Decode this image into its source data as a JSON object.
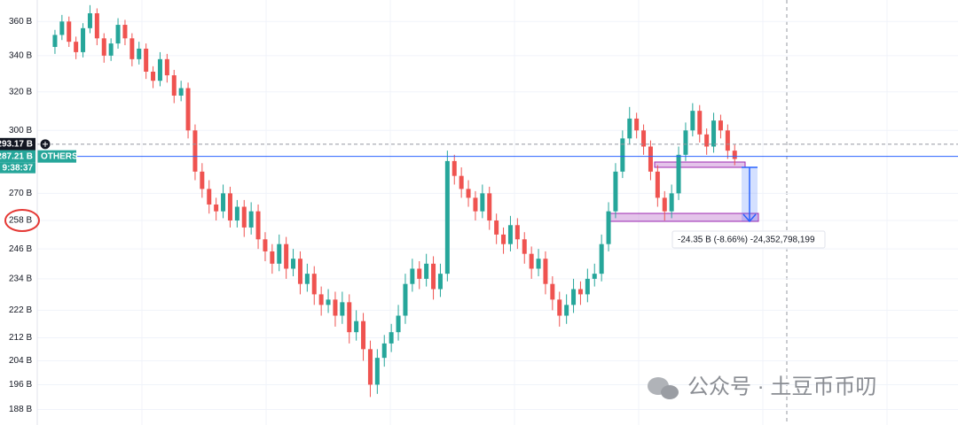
{
  "chart_data": {
    "type": "candlestick",
    "log_scale": true,
    "grid": true,
    "ylim": [
      183.2,
      373.2
    ],
    "yticks": [
      {
        "value": 360,
        "label": "360 B"
      },
      {
        "value": 340,
        "label": "340 B"
      },
      {
        "value": 320,
        "label": "320 B"
      },
      {
        "value": 300,
        "label": "300 B"
      },
      {
        "value": 270,
        "label": "270 B"
      },
      {
        "value": 258,
        "label": "258 B"
      },
      {
        "value": 246,
        "label": "246 B"
      },
      {
        "value": 234,
        "label": "234 B"
      },
      {
        "value": 222,
        "label": "222 B"
      },
      {
        "value": 212,
        "label": "212 B"
      },
      {
        "value": 204,
        "label": "204 B"
      },
      {
        "value": 196,
        "label": "196 B"
      },
      {
        "value": 188,
        "label": "188 B"
      }
    ],
    "up_color": "#26a69a",
    "down_color": "#ef5350",
    "price_lines": [
      {
        "value": 293.17,
        "label": "293.17 B",
        "color": "#131722"
      },
      {
        "value": 287.21,
        "label": "287.21 B",
        "color": "#2962ff"
      }
    ],
    "symbol": "OTHERS",
    "countdown": "9:38:37",
    "measure_label": "-24.35 B (-8.66%) -24,352,798,199",
    "ohlc": [
      [
        345,
        355,
        341,
        352
      ],
      [
        352,
        364,
        349,
        360
      ],
      [
        360,
        363,
        345,
        348
      ],
      [
        348,
        351,
        338,
        342
      ],
      [
        342,
        359,
        339,
        356
      ],
      [
        356,
        370,
        353,
        365
      ],
      [
        365,
        368,
        346,
        350
      ],
      [
        350,
        353,
        336,
        340
      ],
      [
        340,
        350,
        337,
        347
      ],
      [
        347,
        362,
        344,
        358
      ],
      [
        358,
        361,
        346,
        350
      ],
      [
        350,
        353,
        334,
        338
      ],
      [
        338,
        348,
        335,
        344
      ],
      [
        344,
        347,
        327,
        331
      ],
      [
        331,
        334,
        322,
        326
      ],
      [
        326,
        342,
        323,
        338
      ],
      [
        338,
        341,
        325,
        329
      ],
      [
        329,
        332,
        314,
        318
      ],
      [
        318,
        326,
        315,
        322
      ],
      [
        322,
        325,
        296,
        300
      ],
      [
        300,
        303,
        276,
        280
      ],
      [
        280,
        284,
        268,
        272
      ],
      [
        272,
        276,
        261,
        265
      ],
      [
        265,
        268,
        258,
        262
      ],
      [
        262,
        274,
        259,
        270
      ],
      [
        270,
        273,
        255,
        258
      ],
      [
        258,
        267,
        255,
        264
      ],
      [
        264,
        267,
        251,
        255
      ],
      [
        255,
        266,
        252,
        262
      ],
      [
        262,
        265,
        246,
        250
      ],
      [
        250,
        253,
        241,
        245
      ],
      [
        245,
        248,
        236,
        240
      ],
      [
        240,
        252,
        237,
        248
      ],
      [
        248,
        251,
        234,
        238
      ],
      [
        238,
        246,
        235,
        242
      ],
      [
        242,
        245,
        228,
        232
      ],
      [
        232,
        240,
        229,
        236
      ],
      [
        236,
        239,
        224,
        228
      ],
      [
        228,
        231,
        220,
        224
      ],
      [
        224,
        230,
        221,
        226
      ],
      [
        226,
        229,
        216,
        220
      ],
      [
        220,
        229,
        217,
        225
      ],
      [
        225,
        228,
        210,
        214
      ],
      [
        214,
        222,
        211,
        218
      ],
      [
        218,
        221,
        204,
        208
      ],
      [
        208,
        211,
        192,
        196
      ],
      [
        196,
        208,
        193,
        205
      ],
      [
        205,
        213,
        202,
        210
      ],
      [
        210,
        217,
        207,
        214
      ],
      [
        214,
        224,
        211,
        220
      ],
      [
        220,
        236,
        217,
        232
      ],
      [
        232,
        242,
        229,
        238
      ],
      [
        238,
        241,
        230,
        234
      ],
      [
        234,
        244,
        231,
        240
      ],
      [
        240,
        243,
        226,
        230
      ],
      [
        230,
        240,
        227,
        236
      ],
      [
        236,
        290,
        233,
        285
      ],
      [
        285,
        288,
        274,
        278
      ],
      [
        278,
        282,
        268,
        272
      ],
      [
        272,
        276,
        264,
        268
      ],
      [
        268,
        271,
        258,
        262
      ],
      [
        262,
        274,
        259,
        270
      ],
      [
        270,
        273,
        254,
        258
      ],
      [
        258,
        261,
        248,
        252
      ],
      [
        252,
        255,
        244,
        248
      ],
      [
        248,
        260,
        245,
        256
      ],
      [
        256,
        259,
        246,
        250
      ],
      [
        250,
        253,
        240,
        244
      ],
      [
        244,
        247,
        234,
        238
      ],
      [
        238,
        246,
        235,
        242
      ],
      [
        242,
        245,
        228,
        232
      ],
      [
        232,
        235,
        222,
        226
      ],
      [
        226,
        229,
        216,
        220
      ],
      [
        220,
        228,
        217,
        224
      ],
      [
        224,
        234,
        221,
        230
      ],
      [
        230,
        233,
        224,
        228
      ],
      [
        228,
        238,
        225,
        234
      ],
      [
        234,
        240,
        231,
        236
      ],
      [
        236,
        252,
        233,
        248
      ],
      [
        248,
        266,
        245,
        262
      ],
      [
        262,
        284,
        259,
        280
      ],
      [
        280,
        300,
        277,
        296
      ],
      [
        296,
        312,
        293,
        306
      ],
      [
        306,
        309,
        296,
        300
      ],
      [
        300,
        303,
        288,
        292
      ],
      [
        292,
        295,
        276,
        280
      ],
      [
        280,
        283,
        264,
        268
      ],
      [
        268,
        271,
        258,
        262
      ],
      [
        262,
        274,
        259,
        270
      ],
      [
        270,
        292,
        267,
        288
      ],
      [
        288,
        304,
        285,
        300
      ],
      [
        300,
        314,
        297,
        310
      ],
      [
        310,
        313,
        294,
        298
      ],
      [
        298,
        301,
        288,
        292
      ],
      [
        292,
        309,
        289,
        305
      ],
      [
        305,
        308,
        296,
        300
      ],
      [
        300,
        303,
        286,
        290
      ],
      [
        290,
        293,
        283,
        286
      ]
    ]
  },
  "watermark": "公众号 · 土豆币币叨"
}
